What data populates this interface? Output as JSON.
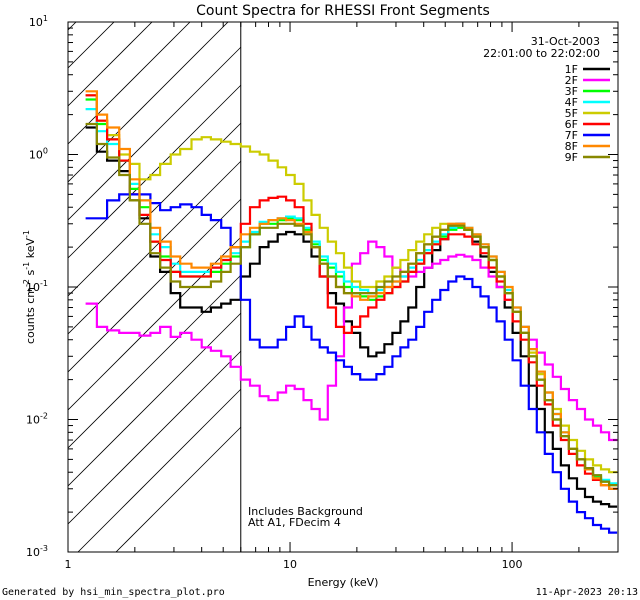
{
  "chart_data": {
    "type": "line",
    "title": "Count Spectra for RHESSI Front Segments",
    "xlabel": "Energy (keV)",
    "ylabel": "counts cm",
    "ylabel_sup1": "-2",
    "ylabel_mid": " s",
    "ylabel_sup2": "-1",
    "ylabel_end": " keV",
    "ylabel_sup3": "-1",
    "xscale": "log",
    "yscale": "log",
    "xlim": [
      1,
      300
    ],
    "ylim": [
      0.001,
      10
    ],
    "x_ticks": [
      {
        "value": 1,
        "label": "1"
      },
      {
        "value": 10,
        "label": "10"
      },
      {
        "value": 100,
        "label": "100"
      }
    ],
    "y_ticks": [
      {
        "exp": 1,
        "base": "10",
        "sup": "1"
      },
      {
        "exp": 0,
        "base": "10",
        "sup": "0"
      },
      {
        "exp": -1,
        "base": "10",
        "sup": "-1"
      },
      {
        "exp": -2,
        "base": "10",
        "sup": "-2"
      },
      {
        "exp": -3,
        "base": "10",
        "sup": "-3"
      }
    ],
    "hatch_xmax": 6,
    "date": "31-Oct-2003",
    "time_range": "22:01:00 to 22:02:00",
    "note_line1": "Includes Background",
    "note_line2": "Att A1, FDecim  4",
    "footer_left": "Generated by hsi_min_spectra_plot.pro",
    "footer_right": "11-Apr-2023 20:13",
    "edges": [
      1.2,
      1.35,
      1.5,
      1.7,
      1.9,
      2.1,
      2.35,
      2.6,
      2.9,
      3.2,
      3.6,
      4.0,
      4.4,
      4.9,
      5.4,
      6.0,
      6.6,
      7.3,
      8.0,
      8.8,
      9.6,
      10.5,
      11.5,
      12.5,
      13.6,
      14.8,
      16.1,
      17.5,
      19.0,
      20.7,
      22.5,
      24.5,
      26.6,
      28.9,
      31.4,
      34.1,
      37.0,
      40.2,
      43.7,
      47.5,
      51.6,
      56.1,
      61.0,
      66.3,
      72.1,
      78.4,
      85.2,
      92.6,
      100.6,
      109.4,
      118.9,
      129.2,
      140.4,
      152.6,
      165.9,
      180.3,
      196.0,
      213.0,
      231.5,
      251.6,
      273.5,
      297.3
    ],
    "series": [
      {
        "name": "1F",
        "color": "#000000",
        "values": [
          1.6,
          1.05,
          0.9,
          0.75,
          0.45,
          0.33,
          0.17,
          0.13,
          0.09,
          0.07,
          0.07,
          0.065,
          0.07,
          0.075,
          0.08,
          0.12,
          0.15,
          0.2,
          0.22,
          0.25,
          0.26,
          0.25,
          0.22,
          0.17,
          0.12,
          0.09,
          0.075,
          0.055,
          0.045,
          0.035,
          0.03,
          0.032,
          0.037,
          0.045,
          0.055,
          0.07,
          0.1,
          0.14,
          0.19,
          0.23,
          0.28,
          0.3,
          0.27,
          0.22,
          0.17,
          0.13,
          0.1,
          0.07,
          0.045,
          0.03,
          0.018,
          0.012,
          0.008,
          0.006,
          0.0045,
          0.0036,
          0.003,
          0.0026,
          0.0024,
          0.0023,
          0.0022
        ]
      },
      {
        "name": "2F",
        "color": "#ff00ff",
        "values": [
          0.075,
          0.05,
          0.047,
          0.045,
          0.045,
          0.043,
          0.045,
          0.05,
          0.042,
          0.045,
          0.04,
          0.035,
          0.033,
          0.03,
          0.025,
          0.02,
          0.018,
          0.015,
          0.014,
          0.016,
          0.018,
          0.017,
          0.014,
          0.012,
          0.01,
          0.018,
          0.03,
          0.07,
          0.15,
          0.18,
          0.22,
          0.2,
          0.17,
          0.14,
          0.12,
          0.12,
          0.13,
          0.14,
          0.15,
          0.16,
          0.17,
          0.175,
          0.17,
          0.16,
          0.14,
          0.12,
          0.1,
          0.08,
          0.065,
          0.05,
          0.04,
          0.032,
          0.026,
          0.021,
          0.017,
          0.014,
          0.012,
          0.01,
          0.009,
          0.008,
          0.007
        ]
      },
      {
        "name": "3F",
        "color": "#00ff00",
        "values": [
          2.6,
          1.7,
          1.3,
          0.9,
          0.55,
          0.4,
          0.22,
          0.17,
          0.13,
          0.12,
          0.12,
          0.12,
          0.13,
          0.15,
          0.17,
          0.2,
          0.25,
          0.3,
          0.3,
          0.32,
          0.33,
          0.32,
          0.27,
          0.21,
          0.16,
          0.14,
          0.12,
          0.1,
          0.09,
          0.085,
          0.08,
          0.085,
          0.09,
          0.1,
          0.11,
          0.13,
          0.15,
          0.18,
          0.21,
          0.24,
          0.27,
          0.28,
          0.27,
          0.24,
          0.2,
          0.16,
          0.12,
          0.09,
          0.065,
          0.045,
          0.03,
          0.02,
          0.014,
          0.01,
          0.0075,
          0.006,
          0.005,
          0.0042,
          0.0037,
          0.0034,
          0.0032
        ]
      },
      {
        "name": "4F",
        "color": "#00ffff",
        "values": [
          2.2,
          1.5,
          1.2,
          0.9,
          0.6,
          0.45,
          0.25,
          0.2,
          0.15,
          0.13,
          0.13,
          0.13,
          0.14,
          0.16,
          0.18,
          0.22,
          0.26,
          0.31,
          0.32,
          0.33,
          0.34,
          0.33,
          0.28,
          0.22,
          0.17,
          0.15,
          0.13,
          0.11,
          0.1,
          0.095,
          0.09,
          0.095,
          0.1,
          0.11,
          0.12,
          0.14,
          0.16,
          0.19,
          0.22,
          0.25,
          0.28,
          0.29,
          0.28,
          0.25,
          0.21,
          0.17,
          0.13,
          0.095,
          0.07,
          0.05,
          0.034,
          0.023,
          0.016,
          0.011,
          0.008,
          0.006,
          0.005,
          0.0043,
          0.0038,
          0.0035,
          0.0033
        ]
      },
      {
        "name": "5F",
        "color": "#cccc00",
        "values": [
          2.8,
          1.8,
          1.4,
          1.0,
          0.85,
          0.65,
          0.7,
          0.85,
          1.0,
          1.1,
          1.3,
          1.35,
          1.3,
          1.25,
          1.2,
          1.15,
          1.05,
          1.0,
          0.9,
          0.8,
          0.7,
          0.6,
          0.45,
          0.35,
          0.28,
          0.22,
          0.18,
          0.14,
          0.11,
          0.1,
          0.1,
          0.11,
          0.12,
          0.14,
          0.16,
          0.19,
          0.22,
          0.25,
          0.28,
          0.3,
          0.3,
          0.29,
          0.27,
          0.24,
          0.2,
          0.16,
          0.12,
          0.09,
          0.065,
          0.045,
          0.032,
          0.022,
          0.016,
          0.012,
          0.009,
          0.007,
          0.0058,
          0.005,
          0.0045,
          0.0042,
          0.004
        ]
      },
      {
        "name": "6F",
        "color": "#ff0000",
        "values": [
          2.8,
          1.8,
          1.3,
          0.9,
          0.5,
          0.35,
          0.22,
          0.16,
          0.13,
          0.12,
          0.12,
          0.12,
          0.14,
          0.16,
          0.2,
          0.3,
          0.4,
          0.45,
          0.47,
          0.48,
          0.45,
          0.4,
          0.3,
          0.2,
          0.12,
          0.07,
          0.05,
          0.045,
          0.05,
          0.06,
          0.07,
          0.08,
          0.09,
          0.1,
          0.11,
          0.13,
          0.15,
          0.18,
          0.21,
          0.23,
          0.25,
          0.25,
          0.24,
          0.21,
          0.18,
          0.14,
          0.11,
          0.08,
          0.055,
          0.04,
          0.027,
          0.018,
          0.013,
          0.009,
          0.007,
          0.0055,
          0.0045,
          0.0039,
          0.0035,
          0.0032,
          0.003
        ]
      },
      {
        "name": "7F",
        "color": "#0000ff",
        "values": [
          0.33,
          0.33,
          0.45,
          0.5,
          0.5,
          0.5,
          0.43,
          0.38,
          0.4,
          0.42,
          0.4,
          0.35,
          0.32,
          0.28,
          0.2,
          0.08,
          0.04,
          0.035,
          0.035,
          0.04,
          0.05,
          0.06,
          0.05,
          0.04,
          0.035,
          0.032,
          0.028,
          0.025,
          0.022,
          0.02,
          0.02,
          0.022,
          0.025,
          0.03,
          0.035,
          0.04,
          0.05,
          0.065,
          0.08,
          0.095,
          0.11,
          0.12,
          0.115,
          0.1,
          0.085,
          0.07,
          0.055,
          0.04,
          0.028,
          0.018,
          0.012,
          0.008,
          0.0055,
          0.004,
          0.003,
          0.0024,
          0.002,
          0.0018,
          0.0016,
          0.0015,
          0.0014
        ]
      },
      {
        "name": "8F",
        "color": "#ff8800",
        "values": [
          3.0,
          2.0,
          1.6,
          1.1,
          0.65,
          0.45,
          0.28,
          0.22,
          0.17,
          0.15,
          0.14,
          0.14,
          0.15,
          0.17,
          0.2,
          0.25,
          0.28,
          0.3,
          0.32,
          0.33,
          0.32,
          0.3,
          0.26,
          0.2,
          0.15,
          0.12,
          0.1,
          0.09,
          0.085,
          0.08,
          0.085,
          0.09,
          0.1,
          0.11,
          0.13,
          0.15,
          0.18,
          0.21,
          0.24,
          0.27,
          0.3,
          0.3,
          0.28,
          0.25,
          0.21,
          0.17,
          0.13,
          0.1,
          0.07,
          0.05,
          0.034,
          0.023,
          0.016,
          0.011,
          0.008,
          0.006,
          0.005,
          0.0042,
          0.0036,
          0.0032,
          0.003
        ]
      },
      {
        "name": "9F",
        "color": "#888800",
        "values": [
          1.7,
          1.2,
          0.95,
          0.7,
          0.45,
          0.3,
          0.18,
          0.14,
          0.11,
          0.1,
          0.1,
          0.1,
          0.11,
          0.13,
          0.15,
          0.2,
          0.25,
          0.28,
          0.28,
          0.3,
          0.3,
          0.29,
          0.25,
          0.2,
          0.15,
          0.12,
          0.1,
          0.09,
          0.09,
          0.09,
          0.09,
          0.1,
          0.11,
          0.12,
          0.13,
          0.15,
          0.18,
          0.21,
          0.24,
          0.27,
          0.29,
          0.29,
          0.27,
          0.24,
          0.2,
          0.16,
          0.12,
          0.09,
          0.065,
          0.045,
          0.03,
          0.02,
          0.014,
          0.01,
          0.0075,
          0.006,
          0.005,
          0.0043,
          0.0038,
          0.0034,
          0.0032
        ]
      }
    ]
  }
}
